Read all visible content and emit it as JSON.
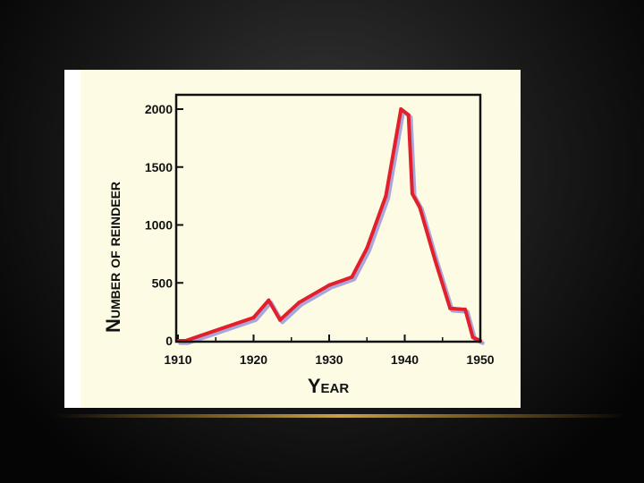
{
  "chart_data": {
    "type": "line",
    "xlabel_parts": {
      "first": "Y",
      "rest": "EAR"
    },
    "ylabel_parts": {
      "n": "N",
      "umber": "UMBER",
      "of": "OF",
      "r": "R",
      "eindeer": "EINDEER"
    },
    "xlabel": "Year",
    "ylabel": "Number of reindeer",
    "xlim": [
      1910,
      1950
    ],
    "ylim": [
      0,
      2000
    ],
    "x_ticks": [
      1910,
      1920,
      1930,
      1940,
      1950
    ],
    "y_ticks": [
      0,
      500,
      1000,
      1500,
      2000
    ],
    "x_minor_ticks": [
      1915,
      1925,
      1935,
      1945
    ],
    "grid": false,
    "series": [
      {
        "color": "#e2202b",
        "shadow_color": "#a9a6dc",
        "x": [
          1910,
          1911,
          1920,
          1922,
          1923.5,
          1926,
          1930,
          1933,
          1935,
          1937.5,
          1939.5,
          1940.5,
          1941,
          1942,
          1944,
          1946,
          1948,
          1949,
          1950
        ],
        "y": [
          0,
          0,
          200,
          350,
          180,
          330,
          480,
          550,
          800,
          1250,
          2000,
          1950,
          1270,
          1150,
          700,
          280,
          270,
          30,
          0
        ]
      }
    ]
  },
  "colors": {
    "slide_panel": "#ffffff",
    "plot_background": "#fdfbe3",
    "axis": "#111111",
    "divider": "#c9a24a"
  }
}
